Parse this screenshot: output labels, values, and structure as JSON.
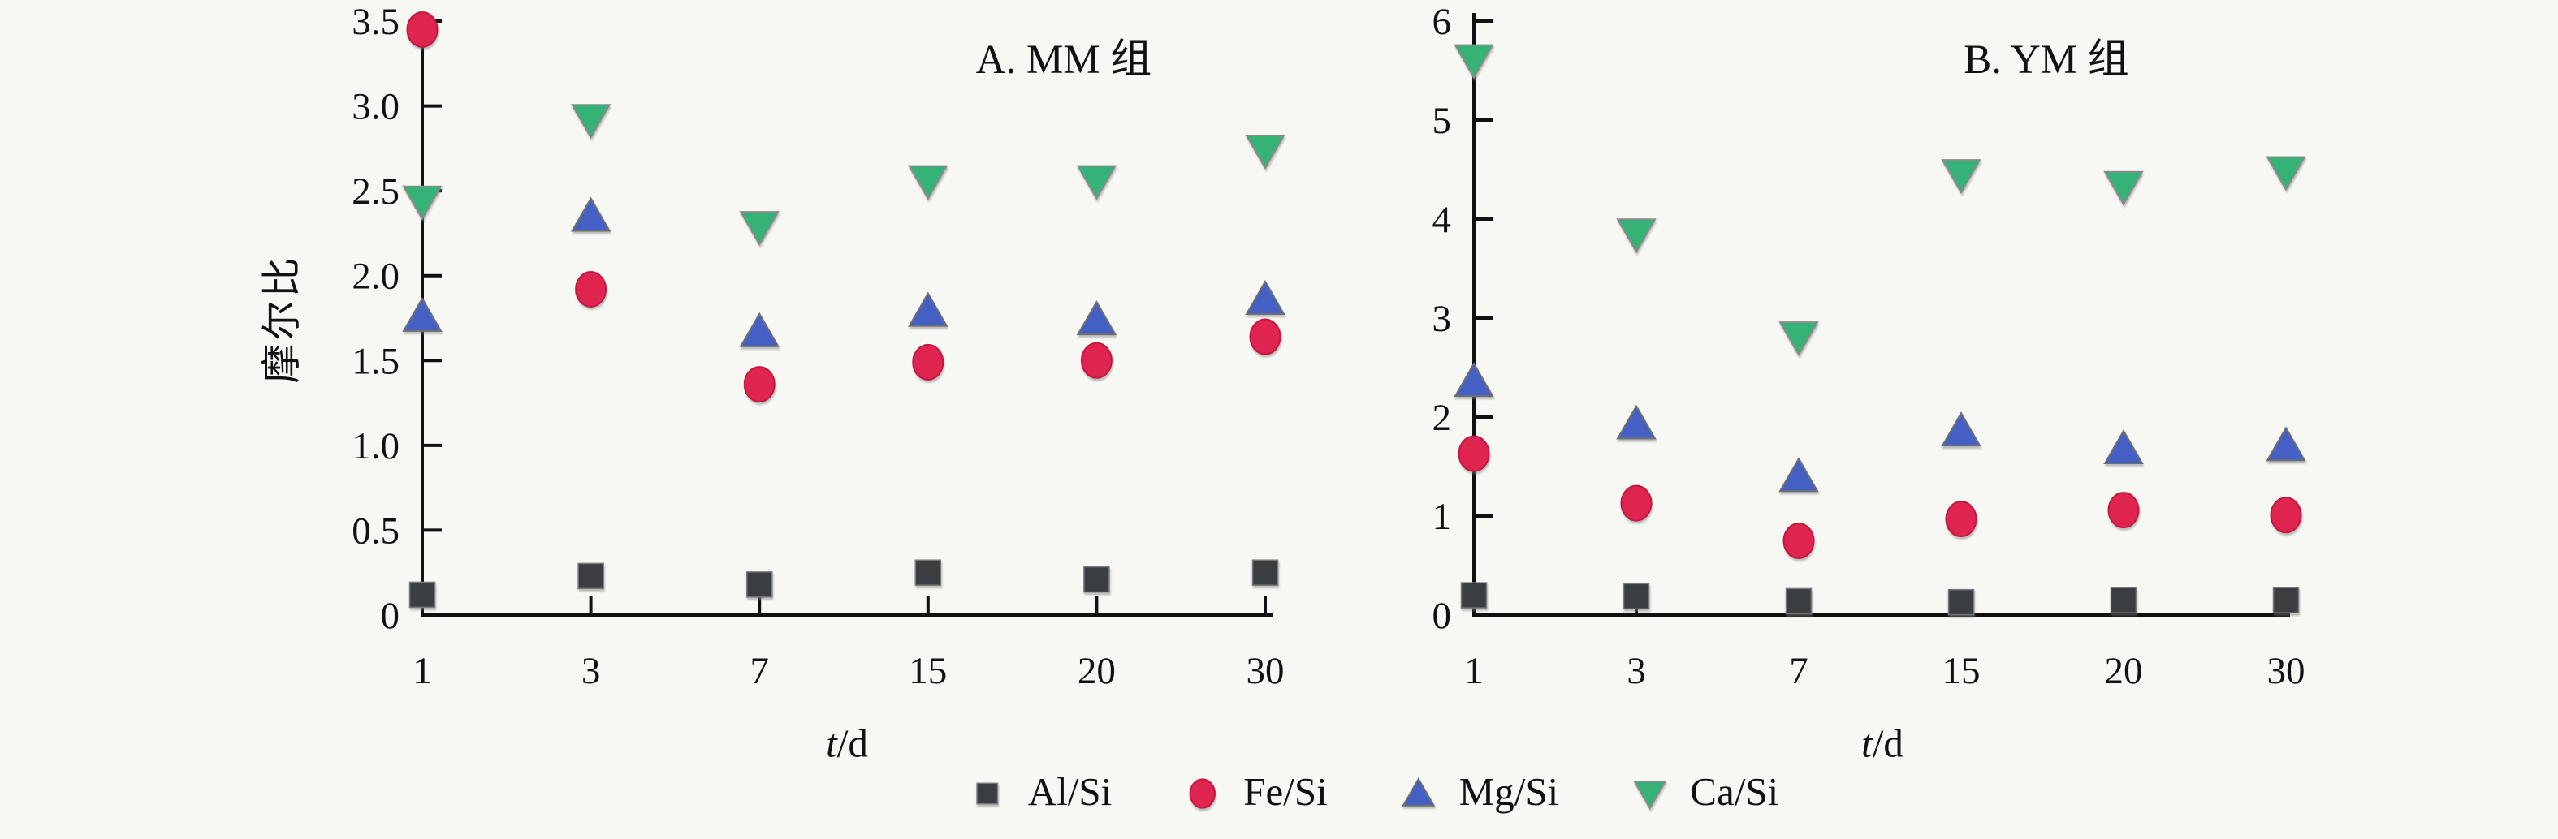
{
  "figure": {
    "background": "#f7f7f4",
    "text_color": "#111111",
    "axis_color": "#111111"
  },
  "legend": {
    "position": "bottom-center",
    "items": [
      {
        "label": "Al/Si",
        "marker": "square",
        "color": "#3b3e40"
      },
      {
        "label": "Fe/Si",
        "marker": "circle",
        "color": "#e02450"
      },
      {
        "label": "Mg/Si",
        "marker": "triangle-up",
        "color": "#4560c5"
      },
      {
        "label": "Ca/Si",
        "marker": "triangle-down",
        "color": "#35b377"
      }
    ]
  },
  "chart_data": [
    {
      "type": "scatter",
      "panel": "A",
      "title": "A. MM 组",
      "ylabel": "摩尔比",
      "xlabel_var": "t",
      "xlabel_unit": "/d",
      "categories": [
        "1",
        "3",
        "7",
        "15",
        "20",
        "30"
      ],
      "x_values": [
        1,
        3,
        7,
        15,
        20,
        30
      ],
      "ylim": [
        0,
        3.5
      ],
      "ytick_values": [
        0,
        0.5,
        1.0,
        1.5,
        2.0,
        2.5,
        3.0,
        3.5
      ],
      "ytick_labels": [
        "0",
        "0.5",
        "1.0",
        "1.5",
        "2.0",
        "2.5",
        "3.0",
        "3.5"
      ],
      "grid": false,
      "legend_position": "shared-bottom",
      "series": [
        {
          "name": "Al/Si",
          "marker": "square",
          "color": "#3b3e40",
          "values": [
            0.12,
            0.23,
            0.18,
            0.25,
            0.21,
            0.25
          ]
        },
        {
          "name": "Fe/Si",
          "marker": "circle",
          "color": "#e02450",
          "values": [
            3.45,
            1.92,
            1.36,
            1.49,
            1.5,
            1.64
          ]
        },
        {
          "name": "Mg/Si",
          "marker": "triangle-up",
          "color": "#4560c5",
          "values": [
            1.76,
            2.35,
            1.67,
            1.79,
            1.74,
            1.86
          ]
        },
        {
          "name": "Ca/Si",
          "marker": "triangle-down",
          "color": "#35b377",
          "values": [
            2.44,
            2.92,
            2.29,
            2.56,
            2.56,
            2.74
          ]
        }
      ]
    },
    {
      "type": "scatter",
      "panel": "B",
      "title": "B. YM 组",
      "ylabel": "",
      "xlabel_var": "t",
      "xlabel_unit": "/d",
      "categories": [
        "1",
        "3",
        "7",
        "15",
        "20",
        "30"
      ],
      "x_values": [
        1,
        3,
        7,
        15,
        20,
        30
      ],
      "ylim": [
        0,
        6
      ],
      "ytick_values": [
        0,
        1,
        2,
        3,
        4,
        5,
        6
      ],
      "ytick_labels": [
        "0",
        "1",
        "2",
        "3",
        "4",
        "5",
        "6"
      ],
      "grid": false,
      "legend_position": "shared-bottom",
      "series": [
        {
          "name": "Al/Si",
          "marker": "square",
          "color": "#3b3e40",
          "values": [
            0.2,
            0.19,
            0.14,
            0.13,
            0.15,
            0.15
          ]
        },
        {
          "name": "Fe/Si",
          "marker": "circle",
          "color": "#e02450",
          "values": [
            1.63,
            1.13,
            0.75,
            0.97,
            1.06,
            1.01
          ]
        },
        {
          "name": "Mg/Si",
          "marker": "triangle-up",
          "color": "#4560c5",
          "values": [
            2.36,
            1.93,
            1.4,
            1.86,
            1.68,
            1.71
          ]
        },
        {
          "name": "Ca/Si",
          "marker": "triangle-down",
          "color": "#35b377",
          "values": [
            5.61,
            3.85,
            2.81,
            4.45,
            4.33,
            4.48
          ]
        }
      ]
    }
  ]
}
